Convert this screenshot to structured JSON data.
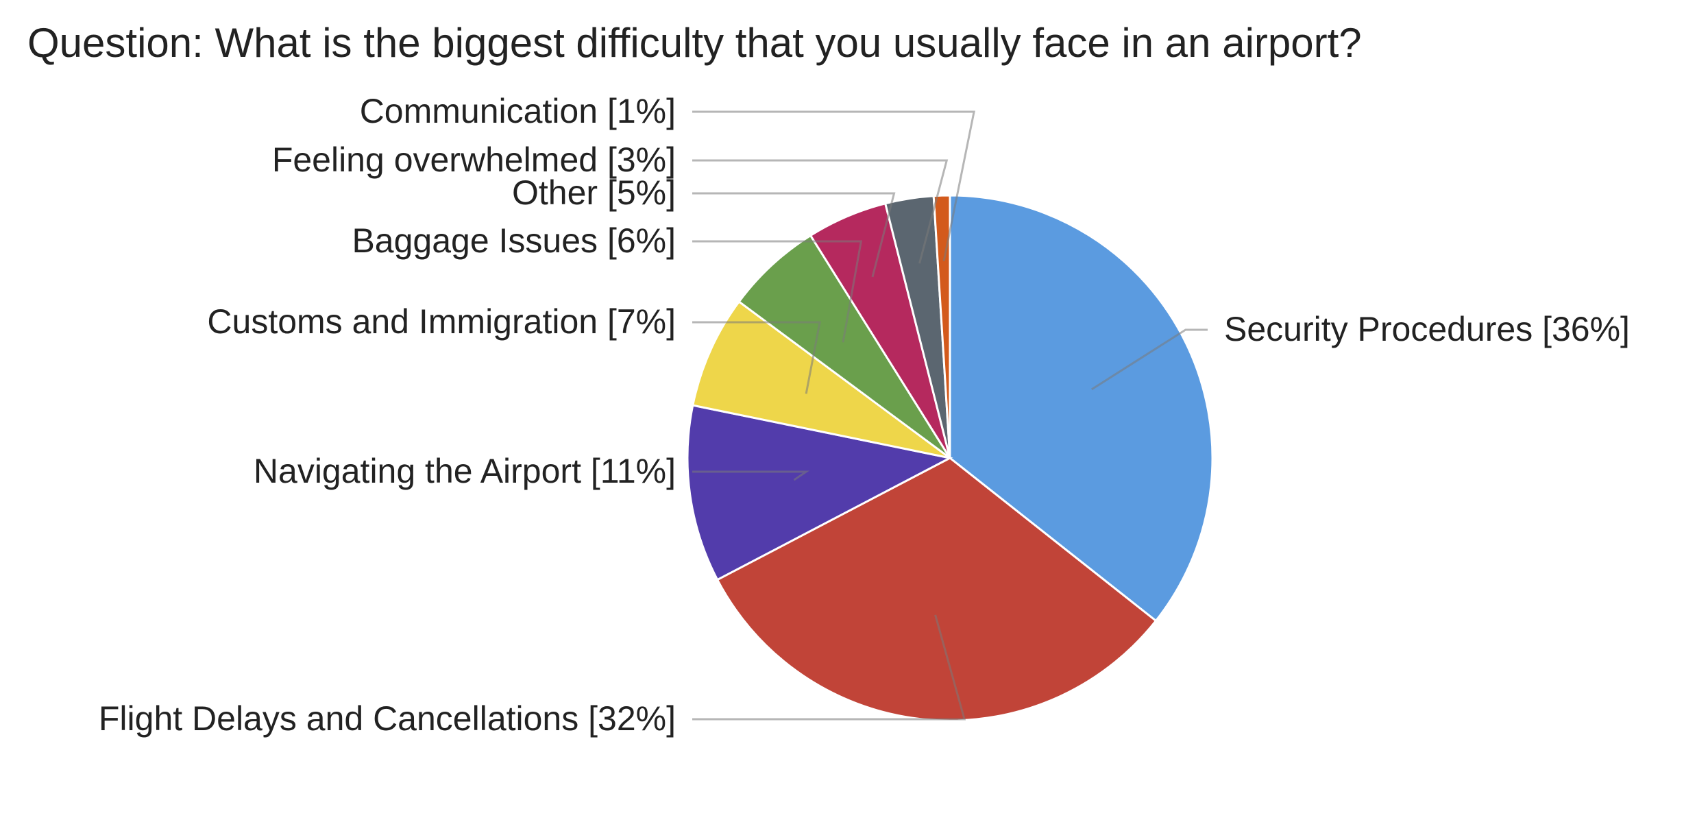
{
  "chart_data": {
    "type": "pie",
    "title": "Question: What is the biggest difficulty that you usually face in an airport?",
    "slices": [
      {
        "label": "Security Procedures [36%]",
        "value": 36,
        "color": "#5b9be0"
      },
      {
        "label": "Flight Delays and Cancellations [32%]",
        "value": 32,
        "color": "#c14438"
      },
      {
        "label": "Navigating the Airport [11%]",
        "value": 11,
        "color": "#523cab"
      },
      {
        "label": "Customs and Immigration [7%]",
        "value": 7,
        "color": "#eed64a"
      },
      {
        "label": "Baggage Issues [6%]",
        "value": 6,
        "color": "#6a9f4c"
      },
      {
        "label": "Other [5%]",
        "value": 5,
        "color": "#b5295e"
      },
      {
        "label": "Feeling overwhelmed [3%]",
        "value": 3,
        "color": "#5b6670"
      },
      {
        "label": "Communication [1%]",
        "value": 1,
        "color": "#d35a1c"
      }
    ],
    "legend": "none",
    "labels": "outside-with-leader-lines"
  }
}
